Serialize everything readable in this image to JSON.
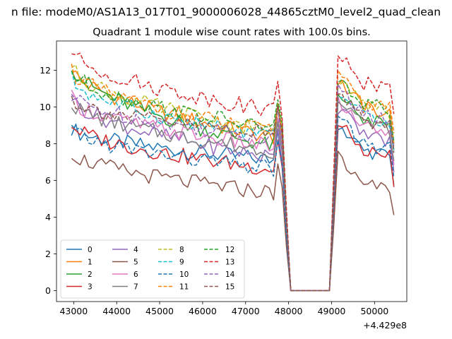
{
  "figure": {
    "suptitle": "n file: modeM0/AS1A13_017T01_9000006028_44865cztM0_level2_quad_clean"
  },
  "chart_data": {
    "type": "line",
    "title": "Quadrant 1 module wise count rates with 100.0s bins.",
    "xlabel": "",
    "ylabel": "",
    "x_offset_label": "+4.429e8",
    "xlim": [
      42600,
      50750
    ],
    "ylim": [
      -0.6,
      13.6
    ],
    "xticks": [
      43000,
      44000,
      45000,
      46000,
      47000,
      48000,
      49000,
      50000
    ],
    "yticks": [
      0,
      2,
      4,
      6,
      8,
      10,
      12
    ],
    "grid": false,
    "legend": {
      "placement": "lower-left",
      "columns": 4
    },
    "x": [
      42950,
      43050,
      43150,
      43250,
      43350,
      43450,
      43550,
      43650,
      43750,
      43850,
      43950,
      44050,
      44150,
      44250,
      44350,
      44450,
      44550,
      44650,
      44750,
      44850,
      44950,
      45050,
      45150,
      45250,
      45350,
      45450,
      45550,
      45650,
      45750,
      45850,
      45950,
      46050,
      46150,
      46250,
      46350,
      46450,
      46550,
      46650,
      46750,
      46850,
      46950,
      47050,
      47150,
      47250,
      47350,
      47450,
      47550,
      47650,
      47750,
      47850,
      47950,
      48050,
      48150,
      48250,
      48350,
      48450,
      48550,
      48650,
      48750,
      48850,
      48950,
      49050,
      49150,
      49250,
      49350,
      49450,
      49550,
      49650,
      49750,
      49850,
      49950,
      50050,
      50150,
      50250,
      50350,
      50450
    ],
    "series": [
      {
        "name": "0",
        "color": "#1f77b4",
        "dash": "solid",
        "start": 8.9,
        "end": 7.1,
        "post": 7.9,
        "drift": -0.6
      },
      {
        "name": "1",
        "color": "#ff7f0e",
        "dash": "solid",
        "start": 12.2,
        "end": 8.3,
        "post": 10.3,
        "drift": -0.7
      },
      {
        "name": "2",
        "color": "#2ca02c",
        "dash": "solid",
        "start": 12.4,
        "end": 7.8,
        "post": 9.6,
        "drift": -0.6
      },
      {
        "name": "3",
        "color": "#d62728",
        "dash": "solid",
        "start": 9.1,
        "end": 6.6,
        "post": 7.9,
        "drift": -0.6
      },
      {
        "name": "4",
        "color": "#9467bd",
        "dash": "solid",
        "start": 10.6,
        "end": 7.2,
        "post": 8.8,
        "drift": -0.7
      },
      {
        "name": "5",
        "color": "#8c564b",
        "dash": "solid",
        "start": 7.6,
        "end": 5.3,
        "post": 6.3,
        "drift": -0.9
      },
      {
        "name": "6",
        "color": "#e377c2",
        "dash": "solid",
        "start": 10.5,
        "end": 7.8,
        "post": 9.2,
        "drift": -0.6
      },
      {
        "name": "7",
        "color": "#7f7f7f",
        "dash": "solid",
        "start": 10.3,
        "end": 7.6,
        "post": 9.4,
        "drift": -0.6
      },
      {
        "name": "8",
        "color": "#bcbd22",
        "dash": "dashed",
        "start": 12.3,
        "end": 8.6,
        "post": 10.3,
        "drift": -0.6
      },
      {
        "name": "9",
        "color": "#17becf",
        "dash": "dashed",
        "start": 11.6,
        "end": 8.3,
        "post": 9.7,
        "drift": -0.5
      },
      {
        "name": "10",
        "color": "#1f77b4",
        "dash": "dashed",
        "start": 8.8,
        "end": 6.6,
        "post": 8.2,
        "drift": -0.5
      },
      {
        "name": "11",
        "color": "#ff7f0e",
        "dash": "dashed",
        "start": 12.1,
        "end": 8.6,
        "post": 10.5,
        "drift": -0.6
      },
      {
        "name": "12",
        "color": "#2ca02c",
        "dash": "dashed",
        "start": 12.0,
        "end": 8.8,
        "post": 10.4,
        "drift": -0.5
      },
      {
        "name": "13",
        "color": "#d62728",
        "dash": "dashed",
        "start": 13.1,
        "end": 9.8,
        "post": 11.6,
        "drift": -0.6
      },
      {
        "name": "14",
        "color": "#9467bd",
        "dash": "dashed",
        "start": 10.7,
        "end": 8.3,
        "post": 9.8,
        "drift": -0.5
      },
      {
        "name": "15",
        "color": "#8c564b",
        "dash": "dashed",
        "start": 10.5,
        "end": 8.5,
        "post": 9.5,
        "drift": -0.5
      }
    ],
    "gap": {
      "from": 47950,
      "to": 49050,
      "value": 0
    }
  }
}
